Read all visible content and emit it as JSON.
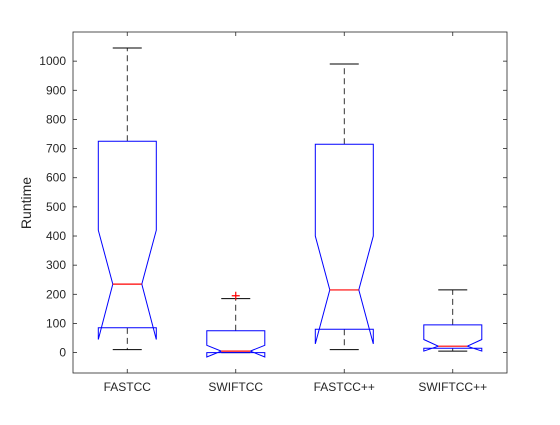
{
  "chart_data": {
    "type": "box",
    "title": "",
    "xlabel": "",
    "ylabel": "Runtime",
    "ylim": [
      -70,
      1100
    ],
    "yticks": [
      0,
      100,
      200,
      300,
      400,
      500,
      600,
      700,
      800,
      900,
      1000
    ],
    "grid": false,
    "notched": true,
    "colors": {
      "box": "#0000ff",
      "median": "#ff0000",
      "whisker": "#000000",
      "outlier": "#ff0000",
      "axis": "#262626"
    },
    "categories": [
      "FASTCC",
      "SWIFTCC",
      "FASTCC++",
      "SWIFTCC++"
    ],
    "boxes": [
      {
        "name": "FASTCC",
        "whisker_low": 10,
        "q1": 85,
        "median": 235,
        "q3": 725,
        "whisker_high": 1045,
        "notch_low": 45,
        "notch_high": 420,
        "outliers": []
      },
      {
        "name": "SWIFTCC",
        "whisker_low": 0,
        "q1": 0,
        "median": 5,
        "q3": 75,
        "whisker_high": 185,
        "notch_low": -15,
        "notch_high": 25,
        "outliers": [
          195
        ]
      },
      {
        "name": "FASTCC++",
        "whisker_low": 10,
        "q1": 80,
        "median": 215,
        "q3": 715,
        "whisker_high": 990,
        "notch_low": 30,
        "notch_high": 400,
        "outliers": []
      },
      {
        "name": "SWIFTCC++",
        "whisker_low": 5,
        "q1": 15,
        "median": 22,
        "q3": 95,
        "whisker_high": 215,
        "notch_low": 5,
        "notch_high": 45,
        "outliers": []
      }
    ]
  }
}
